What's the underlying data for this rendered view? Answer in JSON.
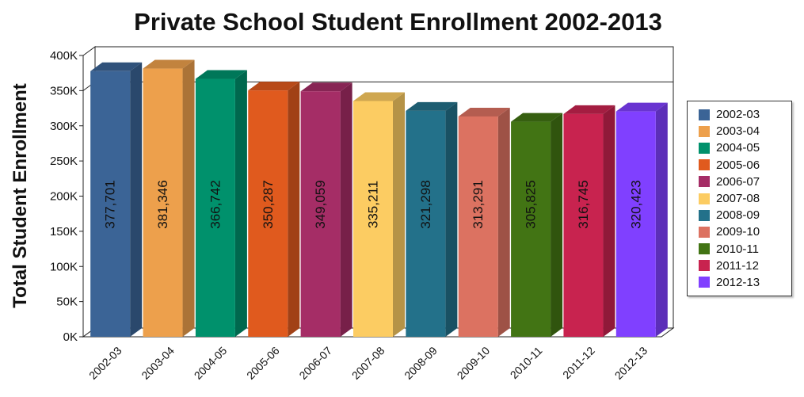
{
  "chart_data": {
    "type": "bar",
    "title": "Private School Student Enrollment 2002-2013",
    "ylabel": "Total Student Enrollment",
    "xlabel": "",
    "ylim": [
      0,
      400000
    ],
    "yticks": [
      "0K",
      "50K",
      "100K",
      "150K",
      "200K",
      "250K",
      "300K",
      "350K",
      "400K"
    ],
    "grid": "top gridline only",
    "legend_position": "right",
    "categories": [
      "2002-03",
      "2003-04",
      "2004-05",
      "2005-06",
      "2006-07",
      "2007-08",
      "2008-09",
      "2009-10",
      "2010-11",
      "2011-12",
      "2012-13"
    ],
    "values": [
      377701,
      381346,
      366742,
      350287,
      349059,
      335211,
      321298,
      313291,
      305825,
      316745,
      320423
    ],
    "value_labels": [
      "377,701",
      "381,346",
      "366,742",
      "350,287",
      "349,059",
      "335,211",
      "321,298",
      "313,291",
      "305,825",
      "316,745",
      "320,423"
    ],
    "colors": [
      "#3b6496",
      "#eda04c",
      "#00916c",
      "#e05a1e",
      "#a52d66",
      "#fccc62",
      "#23718a",
      "#dc7261",
      "#427414",
      "#c8234f",
      "#8040ff"
    ]
  }
}
